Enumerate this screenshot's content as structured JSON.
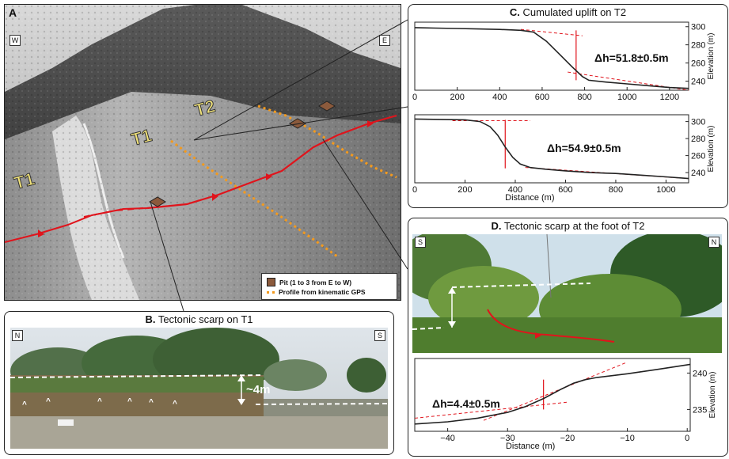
{
  "panel_a": {
    "letter": "A",
    "corner_left": "W",
    "corner_right": "E",
    "terrace_labels": [
      "T1",
      "T1",
      "T2"
    ],
    "legend": {
      "pit": "Pit (1 to 3 from E to W)",
      "profile": "Profile from kinematic GPS"
    }
  },
  "panel_b": {
    "letter": "B.",
    "title": "Tectonic scarp on T1",
    "corner_left": "N",
    "corner_right": "S",
    "height_label": "~4m"
  },
  "panel_c": {
    "letter": "C.",
    "title": "Cumulated uplift on T2",
    "plots": [
      {
        "delta_label": "Δh=51.8±0.5m",
        "ylabel": "Elevation (m)",
        "xticks": [
          "0",
          "200",
          "400",
          "600",
          "800",
          "1000",
          "1200"
        ],
        "yticks": [
          "300",
          "280",
          "260",
          "240"
        ],
        "xlim": [
          0,
          1290
        ],
        "ylim": [
          230,
          305
        ]
      },
      {
        "delta_label": "Δh=54.9±0.5m",
        "ylabel": "Elevation (m)",
        "xlabel": "Distance (m)",
        "xticks": [
          "0",
          "200",
          "400",
          "600",
          "800",
          "1000"
        ],
        "yticks": [
          "300",
          "280",
          "260",
          "240"
        ],
        "xlim": [
          0,
          1090
        ],
        "ylim": [
          228,
          308
        ]
      }
    ]
  },
  "panel_d": {
    "letter": "D.",
    "title": "Tectonic scarp at the foot of  T2",
    "corner_left": "S",
    "corner_right": "N",
    "plot": {
      "delta_label": "Δh=4.4±0.5m",
      "ylabel": "Elevation (m)",
      "xlabel": "Distance (m)",
      "xticks": [
        "−40",
        "−30",
        "−20",
        "−10",
        "0"
      ],
      "yticks": [
        "240",
        "235"
      ],
      "xlim": [
        -45.5,
        0.5
      ],
      "ylim": [
        232,
        242
      ]
    }
  },
  "chart_data": [
    {
      "type": "line",
      "title": "Cumulated uplift on T2",
      "ylabel": "Elevation (m)",
      "annotation": "Δh=51.8±0.5m",
      "x": [
        0,
        100,
        200,
        300,
        400,
        500,
        560,
        620,
        680,
        740,
        790,
        820,
        900,
        1000,
        1100,
        1200,
        1290
      ],
      "y": [
        299,
        298.5,
        298,
        297.5,
        297,
        296,
        294,
        284,
        270,
        256,
        245,
        241,
        239,
        237,
        235,
        233,
        232
      ],
      "xlim": [
        0,
        1290
      ],
      "ylim": [
        230,
        305
      ]
    },
    {
      "type": "line",
      "ylabel": "Elevation (m)",
      "xlabel": "Distance (m)",
      "annotation": "Δh=54.9±0.5m",
      "x": [
        0,
        100,
        200,
        260,
        300,
        330,
        360,
        390,
        420,
        460,
        520,
        600,
        700,
        800,
        900,
        1000,
        1090
      ],
      "y": [
        303,
        302.5,
        302,
        300,
        294,
        284,
        270,
        258,
        250,
        246,
        244,
        242,
        240,
        239,
        237,
        235,
        233
      ],
      "xlim": [
        0,
        1090
      ],
      "ylim": [
        228,
        308
      ]
    },
    {
      "type": "line",
      "ylabel": "Elevation (m)",
      "xlabel": "Distance (m)",
      "annotation": "Δh=4.4±0.5m",
      "x": [
        -45.5,
        -40,
        -35,
        -30,
        -27,
        -24,
        -21,
        -19,
        -17,
        -15,
        -10,
        -5,
        0.5
      ],
      "y": [
        233,
        233.3,
        233.8,
        234.6,
        235.4,
        236.5,
        237.8,
        238.6,
        239.1,
        239.4,
        239.9,
        240.5,
        241.2
      ],
      "xlim": [
        -45.5,
        0.5
      ],
      "ylim": [
        232,
        242
      ]
    }
  ],
  "colors": {
    "fault": "#e0141c",
    "profile": "#f39a1e",
    "curve": "#222222",
    "dashed_red": "#e0141c"
  }
}
